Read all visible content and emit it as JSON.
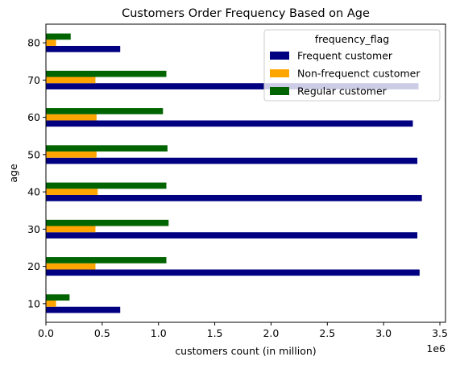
{
  "chart_data": {
    "type": "bar",
    "orientation": "horizontal",
    "title": "Customers Order Frequency Based on Age",
    "xlabel": "customers count (in million)",
    "ylabel": "age",
    "x_offset_label": "1e6",
    "xlim": [
      0,
      3.55
    ],
    "x_scale": 1000000,
    "x_ticks": [
      {
        "value": 0,
        "label": "0.0"
      },
      {
        "value": 0.5,
        "label": "0.5"
      },
      {
        "value": 1.0,
        "label": "1.0"
      },
      {
        "value": 1.5,
        "label": "1.5"
      },
      {
        "value": 2.0,
        "label": "2.0"
      },
      {
        "value": 2.5,
        "label": "2.5"
      },
      {
        "value": 3.0,
        "label": "3.0"
      },
      {
        "value": 3.5,
        "label": "3.5"
      }
    ],
    "categories": [
      "10",
      "20",
      "30",
      "40",
      "50",
      "60",
      "70",
      "80"
    ],
    "series": [
      {
        "name": "Frequent customer",
        "color": "#000080",
        "values": [
          0.66,
          3.32,
          3.3,
          3.34,
          3.3,
          3.26,
          3.31,
          0.66
        ]
      },
      {
        "name": "Non-frequenct customer",
        "color": "#ffa500",
        "values": [
          0.09,
          0.44,
          0.44,
          0.46,
          0.45,
          0.45,
          0.44,
          0.09
        ]
      },
      {
        "name": "Regular customer",
        "color": "#006400",
        "values": [
          0.21,
          1.07,
          1.09,
          1.07,
          1.08,
          1.04,
          1.07,
          0.22
        ]
      }
    ],
    "legend": {
      "title": "frequency_flag",
      "placement": "upper-right"
    },
    "grid": false
  }
}
